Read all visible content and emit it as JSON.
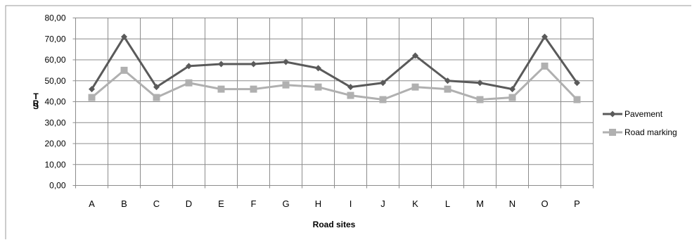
{
  "chart_data": {
    "type": "line",
    "title": "",
    "xlabel": "Road sites",
    "ylabel": "TRS",
    "ylim": [
      0,
      80
    ],
    "ytick_step": 10,
    "ytick_labels": [
      "0,00",
      "10,00",
      "20,00",
      "30,00",
      "40,00",
      "50,00",
      "60,00",
      "70,00",
      "80,00"
    ],
    "grid": true,
    "legend_position": "right",
    "categories": [
      "A",
      "B",
      "C",
      "D",
      "E",
      "F",
      "G",
      "H",
      "I",
      "J",
      "K",
      "L",
      "M",
      "N",
      "O",
      "P"
    ],
    "series": [
      {
        "name": "Pavement",
        "color": "#5a5a5a",
        "marker": "diamond",
        "values": [
          46,
          71,
          47,
          57,
          58,
          58,
          59,
          56,
          47,
          49,
          62,
          50,
          49,
          46,
          71,
          49
        ]
      },
      {
        "name": "Road marking",
        "color": "#b0b0b0",
        "marker": "square",
        "values": [
          42,
          55,
          42,
          49,
          46,
          46,
          48,
          47,
          43,
          41,
          47,
          46,
          41,
          42,
          57,
          41
        ]
      }
    ]
  }
}
